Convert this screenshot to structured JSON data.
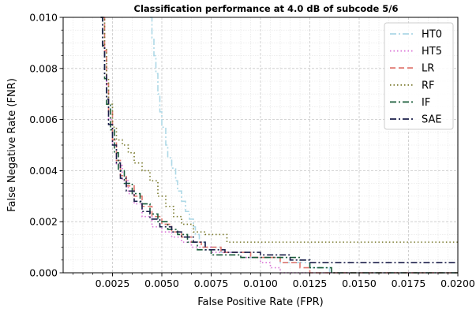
{
  "chart_data": {
    "type": "line",
    "title": "Classification performance at 4.0 dB of subcode 5/6",
    "xlabel": "False Positive Rate (FPR)",
    "ylabel": "False Negative Rate (FNR)",
    "xlim": [
      0.0,
      0.02
    ],
    "ylim": [
      0.0,
      0.01
    ],
    "xticks": [
      "0.0025",
      "0.0050",
      "0.0075",
      "0.0100",
      "0.0125",
      "0.0150",
      "0.0175",
      "0.0200"
    ],
    "yticks": [
      "0.000",
      "0.002",
      "0.004",
      "0.006",
      "0.008",
      "0.010"
    ],
    "grid": true,
    "legend_position": "top-right",
    "series": [
      {
        "name": "HT0",
        "color": "#add8e6",
        "dash": "dashdot",
        "points": [
          [
            0.0044,
            0.01
          ],
          [
            0.0045,
            0.0092
          ],
          [
            0.0046,
            0.0085
          ],
          [
            0.0047,
            0.0078
          ],
          [
            0.0048,
            0.007
          ],
          [
            0.0049,
            0.0063
          ],
          [
            0.005,
            0.0057
          ],
          [
            0.0052,
            0.005
          ],
          [
            0.0053,
            0.0045
          ],
          [
            0.0055,
            0.0041
          ],
          [
            0.0057,
            0.0036
          ],
          [
            0.0058,
            0.0032
          ],
          [
            0.006,
            0.0028
          ],
          [
            0.0062,
            0.0024
          ],
          [
            0.0064,
            0.0021
          ],
          [
            0.0066,
            0.0018
          ],
          [
            0.0067,
            0.0015
          ],
          [
            0.0069,
            0.0012
          ],
          [
            0.0072,
            0.001
          ],
          [
            0.008,
            0.0008
          ],
          [
            0.0095,
            0.0006
          ],
          [
            0.011,
            0.0004
          ],
          [
            0.0125,
            0.0002
          ],
          [
            0.0135,
            0.0
          ],
          [
            0.02,
            0.0
          ]
        ]
      },
      {
        "name": "HT5",
        "color": "#da70d6",
        "dash": "dotted",
        "points": [
          [
            0.002,
            0.01
          ],
          [
            0.0021,
            0.0085
          ],
          [
            0.0022,
            0.0072
          ],
          [
            0.0023,
            0.006
          ],
          [
            0.0025,
            0.005
          ],
          [
            0.0027,
            0.0042
          ],
          [
            0.003,
            0.0036
          ],
          [
            0.0033,
            0.0031
          ],
          [
            0.0036,
            0.0027
          ],
          [
            0.004,
            0.0022
          ],
          [
            0.0045,
            0.0018
          ],
          [
            0.005,
            0.0016
          ],
          [
            0.0055,
            0.0014
          ],
          [
            0.006,
            0.0012
          ],
          [
            0.0065,
            0.001
          ],
          [
            0.0075,
            0.0008
          ],
          [
            0.009,
            0.0006
          ],
          [
            0.01,
            0.0004
          ],
          [
            0.0105,
            0.0002
          ],
          [
            0.011,
            0.0
          ],
          [
            0.02,
            0.0
          ]
        ]
      },
      {
        "name": "LR",
        "color": "#e0776f",
        "dash": "dashed",
        "points": [
          [
            0.002,
            0.01
          ],
          [
            0.0021,
            0.0087
          ],
          [
            0.0022,
            0.0074
          ],
          [
            0.0023,
            0.0063
          ],
          [
            0.0025,
            0.0052
          ],
          [
            0.0027,
            0.0044
          ],
          [
            0.0029,
            0.0038
          ],
          [
            0.0032,
            0.0034
          ],
          [
            0.0036,
            0.003
          ],
          [
            0.004,
            0.0026
          ],
          [
            0.0045,
            0.0022
          ],
          [
            0.005,
            0.0019
          ],
          [
            0.0055,
            0.0016
          ],
          [
            0.006,
            0.0014
          ],
          [
            0.0065,
            0.0012
          ],
          [
            0.007,
            0.001
          ],
          [
            0.008,
            0.0008
          ],
          [
            0.0095,
            0.0006
          ],
          [
            0.011,
            0.0004
          ],
          [
            0.012,
            0.0002
          ],
          [
            0.0125,
            0.0
          ],
          [
            0.02,
            0.0
          ]
        ]
      },
      {
        "name": "RF",
        "color": "#7a7a2e",
        "dash": "dotted",
        "points": [
          [
            0.002,
            0.01
          ],
          [
            0.0021,
            0.0088
          ],
          [
            0.0022,
            0.0076
          ],
          [
            0.0023,
            0.0066
          ],
          [
            0.0025,
            0.0057
          ],
          [
            0.0027,
            0.0052
          ],
          [
            0.003,
            0.005
          ],
          [
            0.0033,
            0.0047
          ],
          [
            0.0036,
            0.0043
          ],
          [
            0.004,
            0.004
          ],
          [
            0.0044,
            0.0036
          ],
          [
            0.0048,
            0.003
          ],
          [
            0.0052,
            0.0026
          ],
          [
            0.0056,
            0.0022
          ],
          [
            0.006,
            0.0019
          ],
          [
            0.0066,
            0.0016
          ],
          [
            0.0072,
            0.0015
          ],
          [
            0.008,
            0.0015
          ],
          [
            0.0083,
            0.0012
          ],
          [
            0.02,
            0.0012
          ]
        ]
      },
      {
        "name": "IF",
        "color": "#1a5c3a",
        "dash": "dashdot",
        "points": [
          [
            0.0019,
            0.01
          ],
          [
            0.002,
            0.0088
          ],
          [
            0.0021,
            0.0076
          ],
          [
            0.0022,
            0.0066
          ],
          [
            0.0024,
            0.0056
          ],
          [
            0.0026,
            0.0047
          ],
          [
            0.0028,
            0.004
          ],
          [
            0.0031,
            0.0035
          ],
          [
            0.0035,
            0.0031
          ],
          [
            0.0039,
            0.0027
          ],
          [
            0.0044,
            0.0023
          ],
          [
            0.0048,
            0.002
          ],
          [
            0.0053,
            0.0017
          ],
          [
            0.0058,
            0.0015
          ],
          [
            0.0063,
            0.0012
          ],
          [
            0.0068,
            0.0009
          ],
          [
            0.0075,
            0.0007
          ],
          [
            0.009,
            0.0006
          ],
          [
            0.0105,
            0.0006
          ],
          [
            0.012,
            0.0005
          ],
          [
            0.0125,
            0.0002
          ],
          [
            0.0136,
            0.0
          ],
          [
            0.02,
            0.0
          ]
        ]
      },
      {
        "name": "SAE",
        "color": "#1b1f4a",
        "dash": "dashdot",
        "points": [
          [
            0.0019,
            0.01
          ],
          [
            0.002,
            0.0089
          ],
          [
            0.0021,
            0.0078
          ],
          [
            0.0022,
            0.0068
          ],
          [
            0.0023,
            0.0058
          ],
          [
            0.0025,
            0.005
          ],
          [
            0.0027,
            0.0043
          ],
          [
            0.0029,
            0.0037
          ],
          [
            0.0032,
            0.0032
          ],
          [
            0.0036,
            0.0028
          ],
          [
            0.004,
            0.0024
          ],
          [
            0.0044,
            0.0021
          ],
          [
            0.0049,
            0.0018
          ],
          [
            0.0055,
            0.0016
          ],
          [
            0.006,
            0.0014
          ],
          [
            0.0066,
            0.0012
          ],
          [
            0.0072,
            0.0009
          ],
          [
            0.0082,
            0.0008
          ],
          [
            0.01,
            0.0007
          ],
          [
            0.0115,
            0.0005
          ],
          [
            0.0125,
            0.0004
          ],
          [
            0.02,
            0.0004
          ]
        ]
      }
    ]
  }
}
